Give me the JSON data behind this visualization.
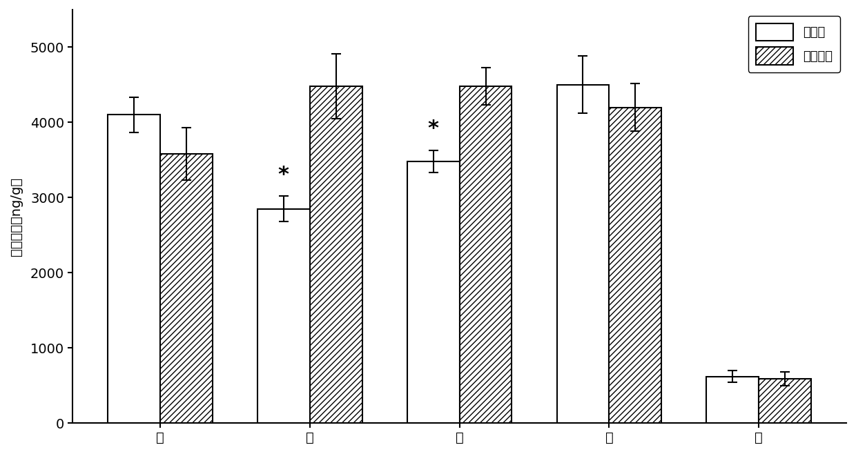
{
  "categories": [
    "根",
    "茎",
    "叶",
    "果",
    "土"
  ],
  "series1_label": "翟碱蓬",
  "series2_label": "盐地碱蓬",
  "series1_values": [
    4100,
    2850,
    3480,
    4500,
    620
  ],
  "series2_values": [
    3580,
    4480,
    4480,
    4200,
    590
  ],
  "series1_errors": [
    230,
    170,
    150,
    380,
    80
  ],
  "series2_errors": [
    350,
    430,
    250,
    320,
    90
  ],
  "significant": [
    false,
    true,
    true,
    false,
    false
  ],
  "ylabel": "多环芳烃（ng/g）",
  "ylim": [
    0,
    5500
  ],
  "yticks": [
    0,
    1000,
    2000,
    3000,
    4000,
    5000
  ],
  "bar_width": 0.35,
  "bar1_color": "#ffffff",
  "bar1_edgecolor": "#000000",
  "bar2_edgecolor": "#000000",
  "hatch_pattern": "////",
  "background_color": "#ffffff",
  "figsize": [
    12.4,
    6.58
  ],
  "dpi": 100,
  "legend_fontsize": 13,
  "tick_fontsize": 14,
  "ylabel_fontsize": 14
}
